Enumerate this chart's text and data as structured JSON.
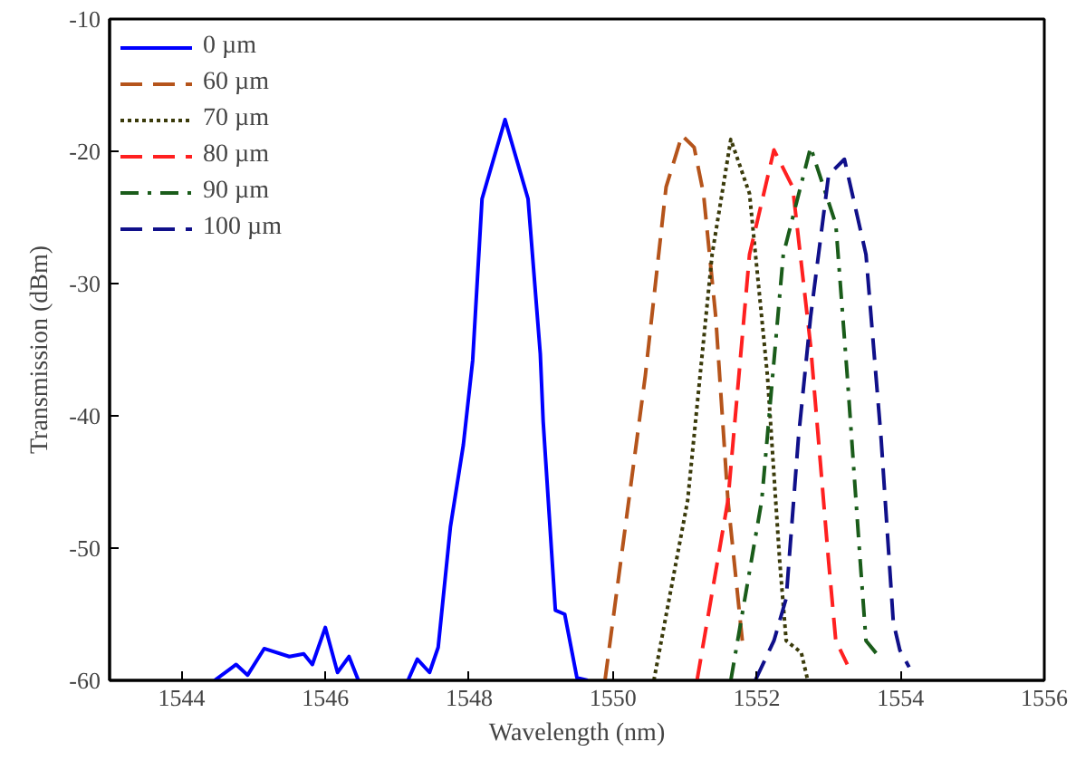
{
  "chart_data": {
    "type": "line",
    "xlabel": "Wavelength (nm)",
    "ylabel": "Transmission (dBm)",
    "xlim": [
      1543,
      1556
    ],
    "xticks": [
      1544,
      1546,
      1548,
      1550,
      1552,
      1554,
      1556
    ],
    "ylim": [
      -60,
      -10
    ],
    "yticks": [
      -60,
      -50,
      -40,
      -30,
      -20,
      -10
    ],
    "grid": false,
    "legend": "top left",
    "marker": "none",
    "series": [
      {
        "name": "0 µm",
        "color": "#0000ff",
        "line_style": "solid",
        "x": [
          1544.46,
          1544.76,
          1544.92,
          1545.15,
          1545.5,
          1545.7,
          1545.82,
          1546.0,
          1546.17,
          1546.33,
          1546.46,
          1546.8,
          1547.15,
          1547.28,
          1547.45,
          1547.57,
          1547.74,
          1547.92,
          1548.05,
          1548.18,
          1548.5,
          1548.82,
          1548.99,
          1549.03,
          1549.2,
          1549.33,
          1549.5,
          1549.65
        ],
        "values": [
          -60,
          -58.8,
          -59.6,
          -57.6,
          -58.2,
          -58,
          -58.8,
          -56,
          -59.4,
          -58.2,
          -60,
          null,
          -60,
          -58.4,
          -59.4,
          -57.5,
          -48.4,
          -42.2,
          -35.8,
          -23.6,
          -17.6,
          -23.6,
          -35.3,
          -40.4,
          -54.7,
          -55,
          -59.8,
          -60
        ]
      },
      {
        "name": "60 µm",
        "color": "#b5541b",
        "line_style": "dashed",
        "x": [
          1549.89,
          1550.45,
          1550.74,
          1550.96,
          1551.13,
          1551.26,
          1551.43,
          1551.6,
          1551.8
        ],
        "values": [
          -60,
          -37,
          -22.7,
          -18.8,
          -19.7,
          -23.2,
          -32.5,
          -46.4,
          -57
        ]
      },
      {
        "name": "70 µm",
        "color": "#3a3a0a",
        "line_style": "dotted",
        "x": [
          1550.57,
          1551.04,
          1551.38,
          1551.64,
          1551.9,
          1552.15,
          1552.32,
          1552.41,
          1552.62,
          1552.71
        ],
        "values": [
          -60,
          -46.4,
          -27.8,
          -19.1,
          -23.2,
          -37,
          -51,
          -57,
          -57.9,
          -60
        ]
      },
      {
        "name": "80 µm",
        "color": "#ff2020",
        "line_style": "dashed",
        "x": [
          1551.17,
          1551.6,
          1551.9,
          1552.24,
          1552.5,
          1552.75,
          1553.0,
          1553.1,
          1553.26
        ],
        "values": [
          -60,
          -46.4,
          -27.8,
          -19.9,
          -22.7,
          -34.7,
          -51,
          -57,
          -58.8
        ]
      },
      {
        "name": "90 µm",
        "color": "#1a5c1a",
        "line_style": "dashdot",
        "x": [
          1551.64,
          1552.07,
          1552.37,
          1552.75,
          1553.1,
          1553.26,
          1553.44,
          1553.52,
          1553.73
        ],
        "values": [
          -60,
          -46.4,
          -27.8,
          -19.7,
          -25.5,
          -37,
          -51,
          -57,
          -58.4
        ]
      },
      {
        "name": "100 µm",
        "color": "#10108a",
        "line_style": "dashed",
        "x": [
          1551.98,
          1552.24,
          1552.41,
          1552.58,
          1552.75,
          1553.0,
          1553.22,
          1553.52,
          1553.73,
          1553.9,
          1553.99,
          1554.12
        ],
        "values": [
          -60,
          -57,
          -53.8,
          -41.7,
          -32.5,
          -21.8,
          -20.6,
          -27.8,
          -41.7,
          -55.6,
          -57.7,
          -59
        ]
      }
    ]
  }
}
